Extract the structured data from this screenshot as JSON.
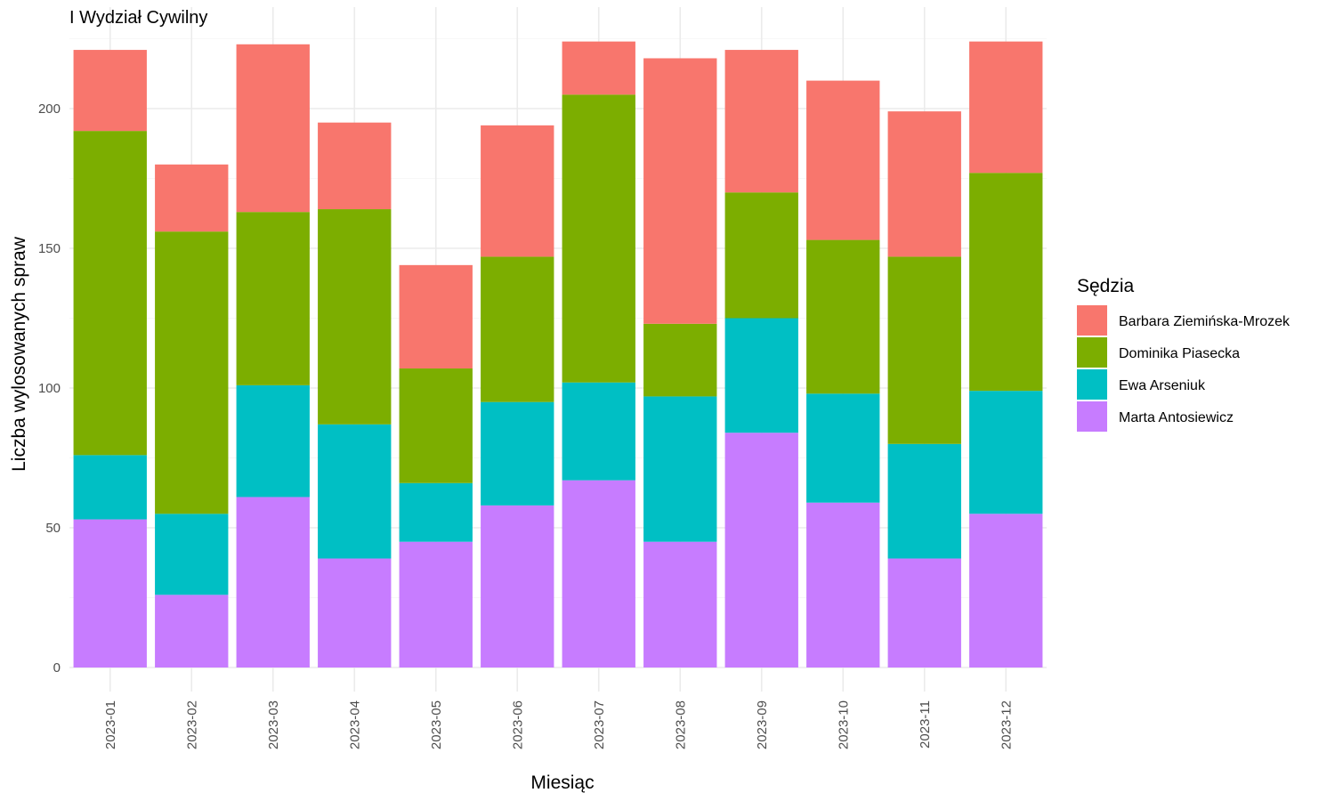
{
  "chart_data": {
    "type": "bar",
    "stacked": true,
    "title": "I Wydział Cywilny",
    "xlabel": "Miesiąc",
    "ylabel": "Liczba wylosowanych spraw",
    "ylim": [
      0,
      230
    ],
    "yticks": [
      0,
      50,
      100,
      150,
      200
    ],
    "grid": true,
    "legend_position": "right",
    "legend_title": "Sędzia",
    "categories": [
      "2023-01",
      "2023-02",
      "2023-03",
      "2023-04",
      "2023-05",
      "2023-06",
      "2023-07",
      "2023-08",
      "2023-09",
      "2023-10",
      "2023-11",
      "2023-12"
    ],
    "series": [
      {
        "name": "Marta Antosiewicz",
        "color": "#C77CFF",
        "values": [
          53,
          26,
          61,
          39,
          45,
          58,
          67,
          45,
          84,
          59,
          39,
          55
        ]
      },
      {
        "name": "Ewa Arseniuk",
        "color": "#00BFC4",
        "values": [
          23,
          29,
          40,
          48,
          21,
          37,
          35,
          52,
          41,
          39,
          41,
          44
        ]
      },
      {
        "name": "Dominika Piasecka",
        "color": "#7CAE00",
        "values": [
          116,
          101,
          62,
          77,
          41,
          52,
          103,
          26,
          45,
          55,
          67,
          78
        ]
      },
      {
        "name": "Barbara Ziemińska-Mrozek",
        "color": "#F8766D",
        "values": [
          29,
          24,
          60,
          31,
          37,
          47,
          19,
          95,
          51,
          57,
          52,
          47
        ]
      }
    ],
    "legend_order": [
      "Barbara Ziemińska-Mrozek",
      "Dominika Piasecka",
      "Ewa Arseniuk",
      "Marta Antosiewicz"
    ]
  }
}
